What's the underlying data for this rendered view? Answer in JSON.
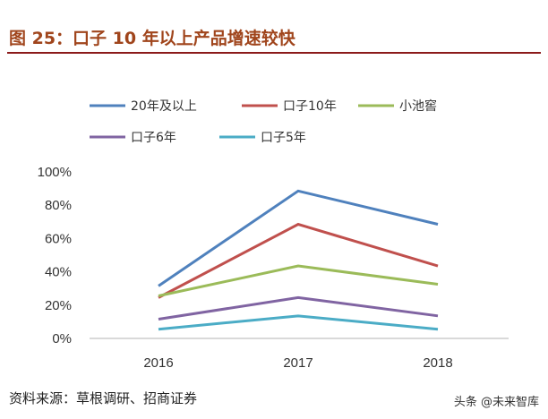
{
  "title": "图 25：口子 10 年以上产品增速较快",
  "source": "资料来源：草根调研、招商证券",
  "watermark": "头条 @未来智库",
  "chart_data": {
    "type": "line",
    "categories": [
      "2016",
      "2017",
      "2018"
    ],
    "ylim": [
      0,
      100
    ],
    "yticks": [
      "0%",
      "20%",
      "40%",
      "60%",
      "80%",
      "100%"
    ],
    "legend_placement": "top",
    "grid": false,
    "series": [
      {
        "name": "20年及以上",
        "color": "#4f81bd",
        "values": [
          31,
          88,
          68
        ]
      },
      {
        "name": "口子10年",
        "color": "#c0504d",
        "values": [
          24,
          68,
          43
        ]
      },
      {
        "name": "小池窖",
        "color": "#9bbb59",
        "values": [
          25,
          43,
          32
        ]
      },
      {
        "name": "口子6年",
        "color": "#8064a2",
        "values": [
          11,
          24,
          13
        ]
      },
      {
        "name": "口子5年",
        "color": "#4bacc6",
        "values": [
          5,
          13,
          5
        ]
      }
    ]
  }
}
